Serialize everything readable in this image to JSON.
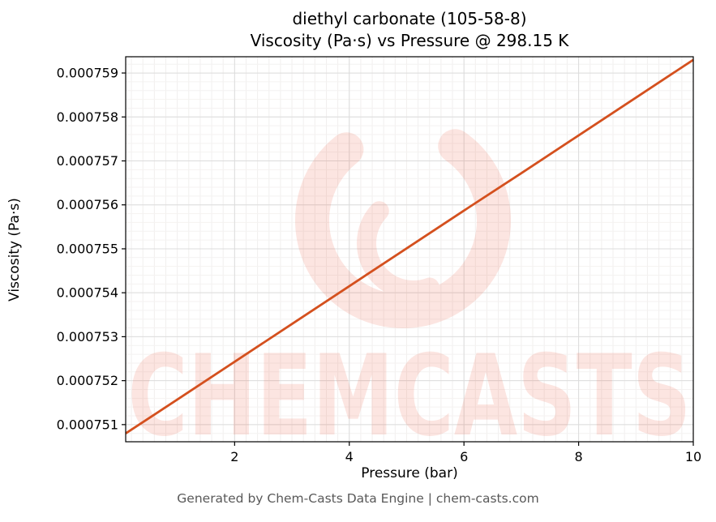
{
  "chart_data": {
    "type": "line",
    "title_line1": "diethyl carbonate (105-58-8)",
    "title_line2": "Viscosity (Pa·s) vs Pressure @ 298.15 K",
    "xlabel": "Pressure (bar)",
    "ylabel": "Viscosity (Pa·s)",
    "xlim": [
      0.1,
      10
    ],
    "ylim": [
      0.00075061,
      0.00075937
    ],
    "xticks": [
      2,
      4,
      6,
      8,
      10
    ],
    "yticks": [
      {
        "value": 0.000751,
        "label": "0.000751"
      },
      {
        "value": 0.000752,
        "label": "0.000752"
      },
      {
        "value": 0.000753,
        "label": "0.000753"
      },
      {
        "value": 0.000754,
        "label": "0.000754"
      },
      {
        "value": 0.000755,
        "label": "0.000755"
      },
      {
        "value": 0.000756,
        "label": "0.000756"
      },
      {
        "value": 0.000757,
        "label": "0.000757"
      },
      {
        "value": 0.000758,
        "label": "0.000758"
      },
      {
        "value": 0.000759,
        "label": "0.000759"
      }
    ],
    "grid": true,
    "legend": "none",
    "line_color": "#d4501e",
    "series": [
      {
        "name": "viscosity",
        "x": [
          0.1,
          1,
          2,
          3,
          4,
          5,
          6,
          7,
          8,
          9,
          10
        ],
        "y": [
          0.0007508,
          0.00075157,
          0.00075243,
          0.00075329,
          0.00075415,
          0.00075501,
          0.00075587,
          0.00075672,
          0.00075758,
          0.00075844,
          0.0007593
        ]
      }
    ]
  },
  "watermark": {
    "text": "CHEMCASTS",
    "color": "#e85c40",
    "opacity": 0.16
  },
  "footer": {
    "text": "Generated by Chem-Casts Data Engine | chem-casts.com"
  }
}
